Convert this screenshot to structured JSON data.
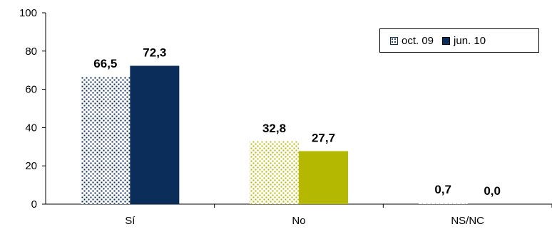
{
  "chart_data": {
    "type": "bar",
    "categories": [
      "Sí",
      "No",
      "NS/NC"
    ],
    "series": [
      {
        "name": "oct. 09",
        "values": [
          66.5,
          32.8,
          0.7
        ],
        "labels": [
          "66,5",
          "32,8",
          "0,7"
        ]
      },
      {
        "name": "jun. 10",
        "values": [
          72.3,
          27.7,
          0.0
        ],
        "labels": [
          "72,3",
          "27,7",
          "0,0"
        ]
      }
    ],
    "ylim": [
      0,
      100
    ],
    "yticks": [
      "0",
      "20",
      "40",
      "60",
      "80",
      "100"
    ],
    "title": "",
    "xlabel": "",
    "ylabel": "",
    "grid": false,
    "legend": "top-right",
    "colors": {
      "Sí": "#0a2d5a",
      "No": "#b5b800",
      "NS/NC": "#c8c8c8",
      "pattern_background": "#ffffff"
    }
  }
}
